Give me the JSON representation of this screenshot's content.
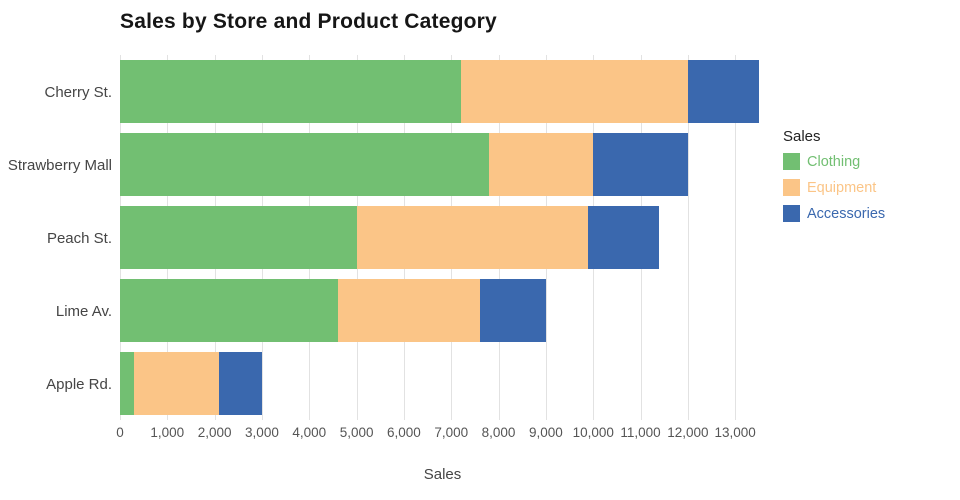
{
  "title": "Sales by Store and Product Category",
  "x_axis": {
    "title": "Sales",
    "tick_step": 1000,
    "tick_max": 13000
  },
  "legend": {
    "title": "Sales",
    "items": [
      {
        "label": "Clothing",
        "color": "#72bf72"
      },
      {
        "label": "Equipment",
        "color": "#fbc587"
      },
      {
        "label": "Accessories",
        "color": "#3a68ae"
      }
    ]
  },
  "chart_data": {
    "type": "bar",
    "orientation": "horizontal",
    "stacked": true,
    "title": "Sales by Store and Product Category",
    "xlabel": "Sales",
    "ylabel": "",
    "xlim": [
      0,
      13630
    ],
    "grid": true,
    "legend_position": "right",
    "categories": [
      "Cherry St.",
      "Strawberry Mall",
      "Peach St.",
      "Lime Av.",
      "Apple Rd."
    ],
    "series": [
      {
        "name": "Clothing",
        "color": "#72bf72",
        "values": [
          7200,
          7800,
          5000,
          4600,
          300
        ]
      },
      {
        "name": "Equipment",
        "color": "#fbc587",
        "values": [
          4800,
          2200,
          4900,
          3000,
          1800
        ]
      },
      {
        "name": "Accessories",
        "color": "#3a68ae",
        "values": [
          1500,
          2000,
          1500,
          1400,
          900
        ]
      }
    ],
    "totals": [
      13500,
      12000,
      11400,
      9000,
      3000
    ]
  }
}
